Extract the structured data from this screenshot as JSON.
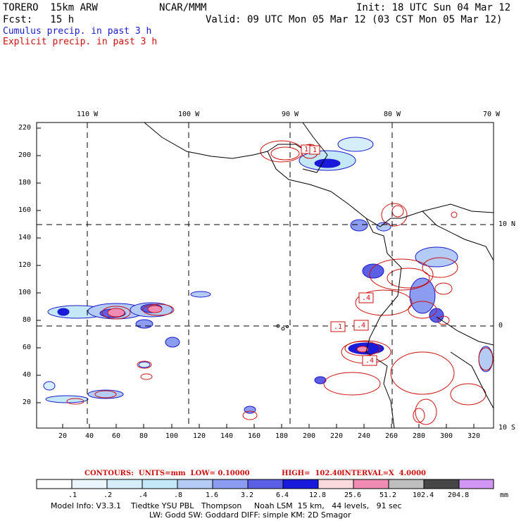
{
  "header": {
    "model": "TORERO  15km ARW",
    "org": "NCAR/MMM",
    "init": "Init: 18 UTC Sun 04 Mar 12",
    "fcst": "Fcst:   15 h",
    "valid": "Valid: 09 UTC Mon 05 Mar 12 (03 CST Mon 05 Mar 12)"
  },
  "legend": {
    "cumulus": "Cumulus precip. in past 3 h",
    "explicit": "Explicit precip. in past 3 h"
  },
  "colors": {
    "cumulus": "#1a1acc",
    "explicit": "#cc1010",
    "coast": "#000000"
  },
  "lon_labels": [
    "110 W",
    "100 W",
    "90 W",
    "80 W",
    "70 W"
  ],
  "lat_labels": [
    "10 N",
    "0",
    "10 S"
  ],
  "y_ticks": [
    "220",
    "200",
    "180",
    "160",
    "140",
    "120",
    "100",
    "80",
    "60",
    "40",
    "20"
  ],
  "x_ticks": [
    "20",
    "40",
    "60",
    "80",
    "100",
    "120",
    "140",
    "160",
    "180",
    "200",
    "220",
    "240",
    "260",
    "280",
    "300",
    "320"
  ],
  "map_labels": [
    "1",
    "1",
    ".4",
    ".1",
    ".4",
    ".4"
  ],
  "contour_info": {
    "contours": "CONTOURS:  UNITS=mm  LOW= 0.10000",
    "high": "HIGH=  102.40",
    "interval": "INTERVAL=X  4.0000"
  },
  "colorbar": {
    "labels": [
      ".1",
      ".2",
      ".4",
      ".8",
      "1.6",
      "3.2",
      "6.4",
      "12.8",
      "25.6",
      "51.2",
      "102.4",
      "204.8"
    ],
    "unit": "mm",
    "colors": [
      "#ffffff",
      "#eaf6fc",
      "#d6eefa",
      "#c4e8f8",
      "#b4ccf5",
      "#8c9cf0",
      "#5a60e6",
      "#1a1adc",
      "#fadadc",
      "#f08cb4",
      "#bebebe",
      "#464646",
      "#d296f5"
    ]
  },
  "footer": {
    "line1": "Model Info: V3.3.1    Tiedtke YSU PBL   Thompson     Noah LSM  15 km,   44 levels,   91 sec",
    "line2": "LW: Godd SW: Goddard DIFF: simple KM: 2D Smagor"
  }
}
